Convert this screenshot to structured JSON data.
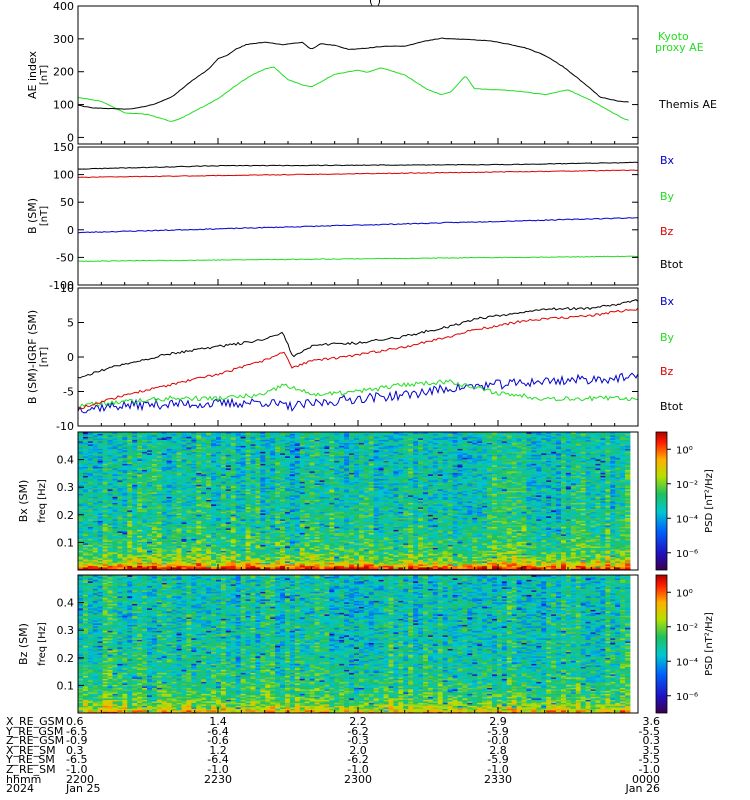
{
  "title": "(         )",
  "chart_data": [
    {
      "type": "line",
      "panel": "ae",
      "ylabel": "AE index",
      "yunit": "[nT]",
      "ylim": [
        -20,
        400
      ],
      "yticks": [
        0,
        100,
        200,
        300,
        400
      ],
      "xlim": [
        0,
        120
      ],
      "series": [
        {
          "name": "Kyoto proxy AE",
          "color": "#22dd22",
          "x": [
            0,
            5,
            10,
            15,
            20,
            22,
            25,
            30,
            35,
            38,
            40,
            42,
            45,
            48,
            50,
            55,
            60,
            62,
            65,
            70,
            75,
            78,
            80,
            83,
            85,
            90,
            95,
            100,
            105,
            110,
            115,
            117,
            118
          ],
          "y": [
            122,
            110,
            75,
            70,
            48,
            58,
            80,
            118,
            170,
            195,
            208,
            214,
            176,
            160,
            154,
            192,
            205,
            198,
            212,
            190,
            145,
            130,
            140,
            188,
            148,
            145,
            140,
            130,
            145,
            112,
            72,
            56,
            52
          ]
        },
        {
          "name": "Themis AE",
          "color": "#000000",
          "x": [
            0,
            3,
            6,
            10,
            13,
            16,
            20,
            24,
            28,
            30,
            32,
            34,
            36,
            40,
            44,
            48,
            50,
            52,
            55,
            58,
            62,
            66,
            70,
            74,
            78,
            80,
            84,
            88,
            92,
            96,
            100,
            104,
            108,
            112,
            116,
            118
          ],
          "y": [
            98,
            90,
            88,
            86,
            90,
            100,
            122,
            168,
            208,
            240,
            250,
            270,
            282,
            290,
            282,
            290,
            268,
            285,
            280,
            268,
            272,
            278,
            278,
            292,
            302,
            300,
            298,
            294,
            285,
            272,
            250,
            215,
            170,
            122,
            110,
            108
          ]
        }
      ]
    },
    {
      "type": "line",
      "panel": "b_sm",
      "ylabel": "B (SM)",
      "yunit": "[nT]",
      "ylim": [
        -100,
        150
      ],
      "yticks": [
        -100,
        -50,
        0,
        50,
        100,
        150
      ],
      "xlim": [
        0,
        120
      ],
      "series": [
        {
          "name": "Bx",
          "color": "#0000cc",
          "x": [
            0,
            120
          ],
          "y": [
            -5,
            22
          ]
        },
        {
          "name": "By",
          "color": "#22dd22",
          "x": [
            0,
            120
          ],
          "y": [
            -57,
            -48
          ]
        },
        {
          "name": "Bz",
          "color": "#dd0000",
          "x": [
            0,
            120
          ],
          "y": [
            95,
            108
          ]
        },
        {
          "name": "Btot",
          "color": "#000000",
          "x": [
            0,
            30,
            60,
            90,
            120
          ],
          "y": [
            110,
            116,
            117,
            118,
            122
          ]
        }
      ]
    },
    {
      "type": "line",
      "panel": "b_minus_igrf",
      "ylabel": "B (SM)-IGRF (SM)",
      "yunit": "[nT]",
      "ylim": [
        -10,
        10
      ],
      "yticks": [
        -10,
        -5,
        0,
        5,
        10
      ],
      "xlim": [
        0,
        120
      ],
      "series": [
        {
          "name": "Bx",
          "color": "#0000cc",
          "x": [
            0,
            10,
            20,
            30,
            40,
            45,
            50,
            60,
            70,
            80,
            90,
            100,
            110,
            120
          ],
          "y": [
            -7.5,
            -7,
            -6.8,
            -6.8,
            -6.5,
            -7.2,
            -6.8,
            -6,
            -5.5,
            -4.5,
            -4,
            -3.5,
            -3.2,
            -3
          ]
        },
        {
          "name": "By",
          "color": "#22dd22",
          "x": [
            0,
            10,
            20,
            30,
            40,
            44,
            48,
            52,
            60,
            70,
            80,
            85,
            90,
            100,
            110,
            120
          ],
          "y": [
            -7,
            -6.5,
            -6,
            -6,
            -5.5,
            -4,
            -5,
            -5.5,
            -5,
            -4,
            -3.5,
            -4.5,
            -5.2,
            -6,
            -6,
            -6
          ]
        },
        {
          "name": "Bz",
          "color": "#dd0000",
          "x": [
            0,
            10,
            20,
            30,
            40,
            44,
            46,
            50,
            55,
            60,
            70,
            80,
            85,
            90,
            95,
            100,
            110,
            120
          ],
          "y": [
            -7.5,
            -5.5,
            -4,
            -2.5,
            -0.5,
            0.8,
            -1.6,
            -0.5,
            -0.2,
            0.3,
            1.5,
            3,
            4,
            4.5,
            5.2,
            5.5,
            6,
            7
          ]
        },
        {
          "name": "Btot",
          "color": "#000000",
          "x": [
            0,
            10,
            20,
            30,
            40,
            44,
            46,
            50,
            55,
            60,
            70,
            80,
            85,
            90,
            95,
            100,
            110,
            120
          ],
          "y": [
            -3,
            -1,
            0.5,
            1.5,
            2.5,
            3.5,
            0,
            1.5,
            2,
            2,
            3,
            4.5,
            5.5,
            6,
            6.5,
            7,
            7,
            8.2
          ]
        }
      ]
    },
    {
      "type": "heatmap",
      "panel": "bx_spec",
      "ylabel": "Bx (SM)",
      "yunit_label": "freq  [Hz]",
      "yticks": [
        0.1,
        0.2,
        0.3,
        0.4
      ],
      "ylim": [
        0,
        0.5
      ],
      "zlabel": "PSD [nT²/Hz]",
      "zscale": "log",
      "zticks": [
        "10⁰",
        "10⁻²",
        "10⁻⁴",
        "10⁻⁶"
      ],
      "zlim": [
        -7,
        1
      ]
    },
    {
      "type": "heatmap",
      "panel": "bz_spec",
      "ylabel": "Bz (SM)",
      "yunit_label": "freq  [Hz]",
      "yticks": [
        0.1,
        0.2,
        0.3,
        0.4
      ],
      "ylim": [
        0,
        0.5
      ],
      "zlabel": "PSD [nT²/Hz]",
      "zscale": "log",
      "zticks": [
        "10⁰",
        "10⁻²",
        "10⁻⁴",
        "10⁻⁶"
      ],
      "zlim": [
        -7,
        1
      ]
    }
  ],
  "colors": {
    "kyoto": "#22dd22",
    "themis": "#000000",
    "bx": "#0000cc",
    "by": "#22dd22",
    "bz": "#dd0000",
    "btot": "#000000"
  },
  "legends": {
    "ae": [
      {
        "text": "Kyoto",
        "color": "#22dd22"
      },
      {
        "text": "proxy AE",
        "color": "#22dd22"
      },
      {
        "text": "Themis AE",
        "color": "#000000"
      }
    ],
    "b_sm": [
      {
        "text": "Bx",
        "color": "#0000cc"
      },
      {
        "text": "By",
        "color": "#22dd22"
      },
      {
        "text": "Bz",
        "color": "#dd0000"
      },
      {
        "text": "Btot",
        "color": "#000000"
      }
    ],
    "b_minus_igrf": [
      {
        "text": "Bx",
        "color": "#0000cc"
      },
      {
        "text": "By",
        "color": "#22dd22"
      },
      {
        "text": "Bz",
        "color": "#dd0000"
      },
      {
        "text": "Btot",
        "color": "#000000"
      }
    ]
  },
  "ephemeris": {
    "rows": [
      {
        "label": "X_RE_GSM",
        "values": [
          "0.6",
          "1.4",
          "2.2",
          "2.9",
          "3.6"
        ]
      },
      {
        "label": "Y_RE_GSM",
        "values": [
          "-6.5",
          "-6.4",
          "-6.2",
          "-5.9",
          "-5.5"
        ]
      },
      {
        "label": "Z_RE_GSM",
        "values": [
          "-0.9",
          "-0.6",
          "-0.3",
          "-0.0",
          "0.3"
        ]
      },
      {
        "label": "X_RE_SM",
        "values": [
          "0.3",
          "1.2",
          "2.0",
          "2.8",
          "3.5"
        ]
      },
      {
        "label": "Y_RE_SM",
        "values": [
          "-6.5",
          "-6.4",
          "-6.2",
          "-5.9",
          "-5.5"
        ]
      },
      {
        "label": "Z_RE_SM",
        "values": [
          "-1.0",
          "-1.0",
          "-1.0",
          "-1.0",
          "-1.0"
        ]
      },
      {
        "label": "hhmm",
        "values": [
          "2200",
          "2230",
          "2300",
          "2330",
          "0000"
        ]
      },
      {
        "label": "2024",
        "values": [
          "Jan 25",
          "",
          "",
          "",
          "Jan 26"
        ]
      }
    ]
  }
}
